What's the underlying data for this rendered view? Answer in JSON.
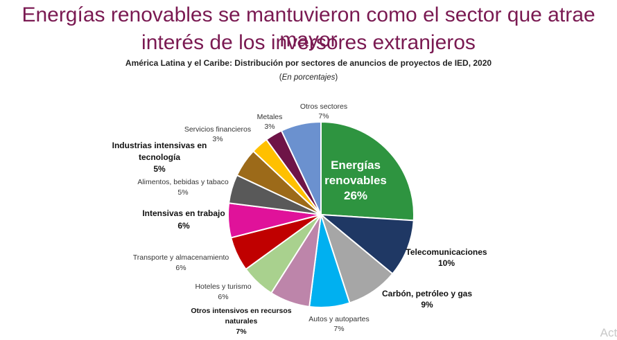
{
  "header": {
    "title_line1": "Energías renovables se mantuvieron como el sector que atrae mayor",
    "title_line2": "interés de los inversores extranjeros"
  },
  "chart_data": {
    "type": "pie",
    "title": "América Latina y el Caribe: Distribución por sectores de anuncios de proyectos de IED, 2020",
    "units_open": "(",
    "units_label": "En porcentajes",
    "units_close": ")",
    "slices": [
      {
        "label": "Energías renovables",
        "value": 26,
        "text": "26%",
        "color": "#2e9440"
      },
      {
        "label": "Telecomunicaciones",
        "value": 10,
        "text": "10%",
        "color": "#1f3864"
      },
      {
        "label": "Carbón, petróleo y gas",
        "value": 9,
        "text": "9%",
        "color": "#a6a6a6"
      },
      {
        "label": "Autos y autopartes",
        "value": 7,
        "text": "7%",
        "color": "#00b0f0"
      },
      {
        "label": "Otros intensivos en recursos naturales",
        "value": 7,
        "text": "7%",
        "color": "#bd85aa"
      },
      {
        "label": "Hoteles y turismo",
        "value": 6,
        "text": "6%",
        "color": "#a9d18e"
      },
      {
        "label": "Transporte y almacenamiento",
        "value": 6,
        "text": "6%",
        "color": "#c00000"
      },
      {
        "label": "Intensivas en trabajo",
        "value": 6,
        "text": "6%",
        "color": "#e0129a"
      },
      {
        "label": "Alimentos, bebidas y tabaco",
        "value": 5,
        "text": "5%",
        "color": "#595959"
      },
      {
        "label": "Industrias intensivas en tecnología",
        "value": 5,
        "text": "5%",
        "color": "#9c6a19"
      },
      {
        "label": "Servicios financieros",
        "value": 3,
        "text": "3%",
        "color": "#ffc000"
      },
      {
        "label": "Metales",
        "value": 3,
        "text": "3%",
        "color": "#6e1447"
      },
      {
        "label": "Otros sectores",
        "value": 7,
        "text": "7%",
        "color": "#6b91cf"
      }
    ]
  },
  "watermark": "Acti"
}
